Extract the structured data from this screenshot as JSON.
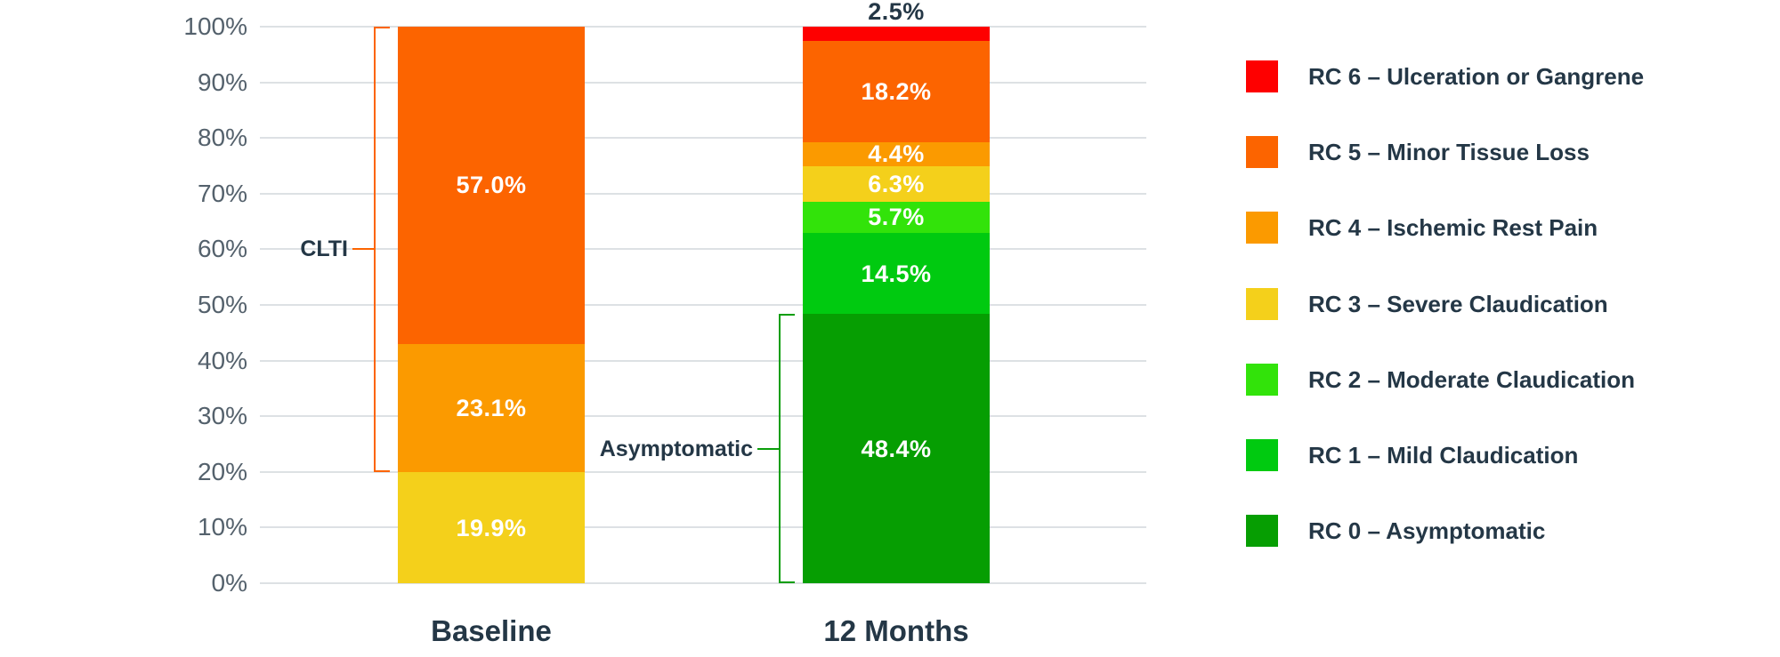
{
  "chart_data": {
    "type": "bar",
    "variant": "stacked-percent-column",
    "title": "",
    "categories": [
      "Baseline",
      "12 Months"
    ],
    "series": [
      {
        "name": "RC 0 – Asymptomatic",
        "color": "#069E02",
        "values": [
          0,
          48.4
        ],
        "value_labels": [
          "",
          "48.4%"
        ]
      },
      {
        "name": "RC 1 – Mild Claudication",
        "color": "#00CA10",
        "values": [
          0,
          14.5
        ],
        "value_labels": [
          "",
          "14.5%"
        ]
      },
      {
        "name": "RC 2 – Moderate Claudication",
        "color": "#32E30A",
        "values": [
          0,
          5.7
        ],
        "value_labels": [
          "",
          "5.7%"
        ]
      },
      {
        "name": "RC 3 – Severe Claudication",
        "color": "#F4D01B",
        "values": [
          19.9,
          6.3
        ],
        "value_labels": [
          "19.9%",
          "6.3%"
        ]
      },
      {
        "name": "RC 4 – Ischemic Rest Pain",
        "color": "#FB9A00",
        "values": [
          23.1,
          4.4
        ],
        "value_labels": [
          "23.1%",
          "4.4%"
        ]
      },
      {
        "name": "RC 5 – Minor Tissue Loss",
        "color": "#FC6400",
        "values": [
          57.0,
          18.2
        ],
        "value_labels": [
          "57.0%",
          "18.2%"
        ]
      },
      {
        "name": "RC 6 – Ulceration or Gangrene",
        "color": "#FE0000",
        "values": [
          0,
          2.5
        ],
        "value_labels": [
          "",
          "2.5%"
        ]
      }
    ],
    "y_axis": {
      "min": 0,
      "max": 100,
      "tick_step": 10,
      "tick_labels": [
        "0%",
        "10%",
        "20%",
        "30%",
        "40%",
        "50%",
        "60%",
        "70%",
        "80%",
        "90%",
        "100%"
      ]
    },
    "grid": true,
    "legend": {
      "position": "right",
      "items": [
        "RC 6 – Ulceration or Gangrene",
        "RC 5 – Minor Tissue Loss",
        "RC 4 – Ischemic Rest Pain",
        "RC 3 – Severe Claudication",
        "RC 2 – Moderate Claudication",
        "RC 1 – Mild Claudication",
        "RC 0 – Asymptomatic"
      ]
    },
    "annotations": [
      {
        "text": "CLTI",
        "category": "Baseline",
        "from_pct": 20,
        "to_pct": 100,
        "color": "#FC6400"
      },
      {
        "text": "Asymptomatic",
        "category": "12 Months",
        "from_pct": 0,
        "to_pct": 48.4,
        "color": "#0A9E0A"
      }
    ],
    "colors": {
      "background": "#FFFFFF",
      "gridline": "#DDE1E4",
      "axis_text": "#54616C",
      "label_text": "#243746",
      "bar_value_text": "#FFFFFF"
    }
  }
}
